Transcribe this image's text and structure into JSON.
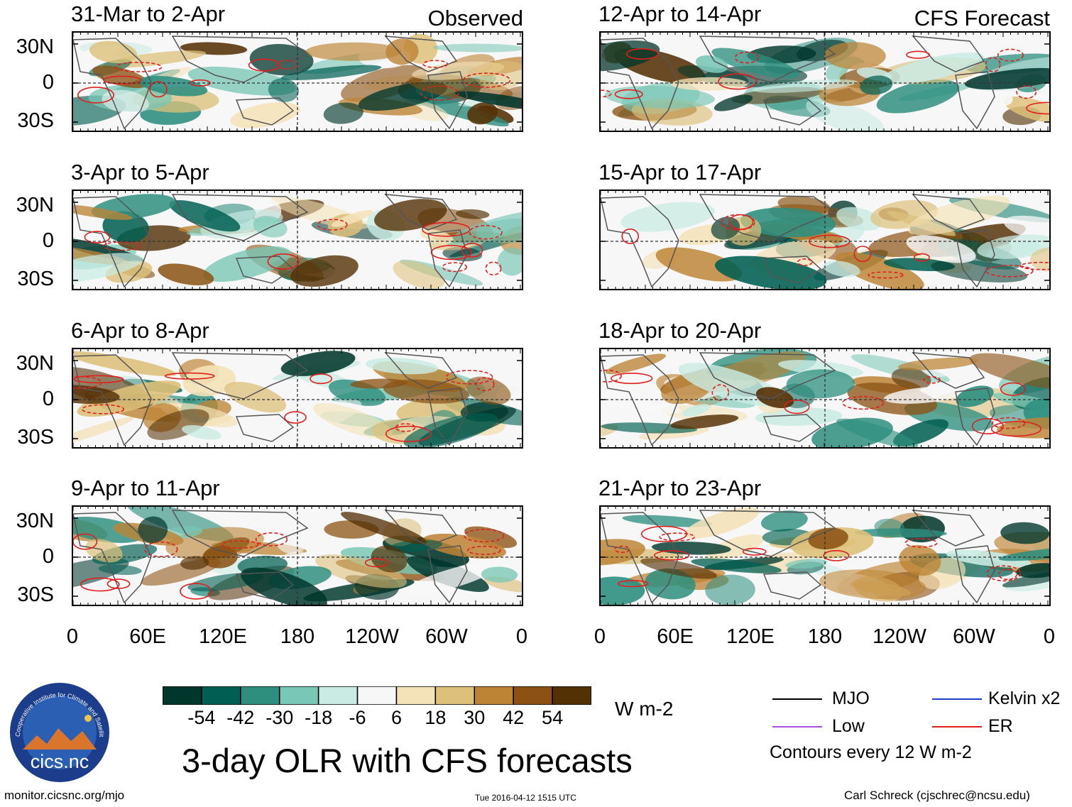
{
  "chart_data": {
    "type": "heatmap",
    "title": "3-day OLR with CFS forecasts",
    "variable": "OLR anomaly",
    "units": "W m-2",
    "ylabels": [
      "30N",
      "0",
      "30S"
    ],
    "xlabels": [
      "0",
      "60E",
      "120E",
      "180",
      "120W",
      "60W",
      "0"
    ],
    "observed_label": "Observed",
    "forecast_label": "CFS Forecast",
    "panels": [
      {
        "period": "31-Mar to 2-Apr",
        "source": "Observed"
      },
      {
        "period": "3-Apr to 5-Apr",
        "source": "Observed"
      },
      {
        "period": "6-Apr to 8-Apr",
        "source": "Observed"
      },
      {
        "period": "9-Apr to 11-Apr",
        "source": "Observed"
      },
      {
        "period": "12-Apr to 14-Apr",
        "source": "CFS Forecast"
      },
      {
        "period": "15-Apr to 17-Apr",
        "source": "CFS Forecast"
      },
      {
        "period": "18-Apr to 20-Apr",
        "source": "CFS Forecast"
      },
      {
        "period": "21-Apr to 23-Apr",
        "source": "CFS Forecast"
      }
    ],
    "colorbar": {
      "ticks": [
        "-54",
        "-42",
        "-30",
        "-18",
        "-6",
        "6",
        "18",
        "30",
        "42",
        "54"
      ],
      "colors": [
        "#00362b",
        "#005f52",
        "#2e8f7f",
        "#79c7b5",
        "#c9ebe3",
        "#f7f7f7",
        "#f4e2b8",
        "#ddc07a",
        "#bd8436",
        "#8b5213",
        "#543005"
      ]
    },
    "legend": [
      {
        "label": "MJO",
        "color": "#000000"
      },
      {
        "label": "Kelvin x2",
        "color": "#1a3fcf"
      },
      {
        "label": "Low",
        "color": "#a44de0"
      },
      {
        "label": "ER",
        "color": "#e01f1f"
      }
    ],
    "contour_note": "Contours every 12 W m-2"
  },
  "logo_text": "cics.nc",
  "logo_ring_text": "Cooperative Institute for Climate and Satellites",
  "footer": {
    "url": "monitor.cicsnc.org/mjo",
    "timestamp": "Tue 2016-04-12 1515 UTC",
    "author": "Carl Schreck (cjschrec@ncsu.edu)"
  }
}
